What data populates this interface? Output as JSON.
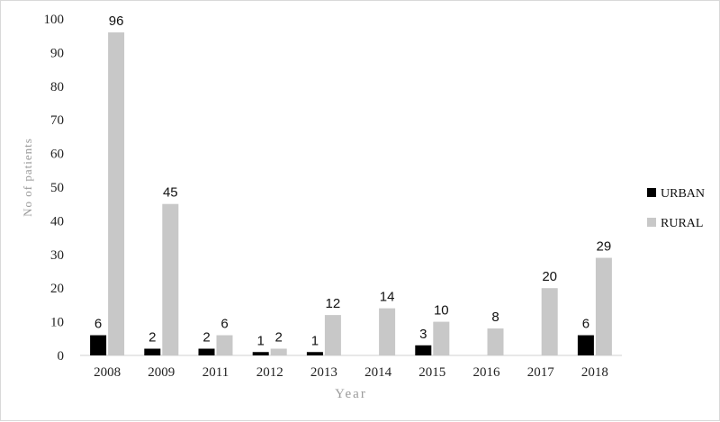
{
  "chart_data": {
    "type": "bar",
    "title": "",
    "xlabel": "Year",
    "ylabel": "No of patients",
    "categories": [
      "2008",
      "2009",
      "2011",
      "2012",
      "2013",
      "2014",
      "2015",
      "2016",
      "2017",
      "2018"
    ],
    "series": [
      {
        "name": "URBAN",
        "color": "#000000",
        "values": [
          6,
          2,
          2,
          1,
          1,
          0,
          3,
          0,
          0,
          6
        ],
        "labels": [
          "6",
          "2",
          "2",
          "1",
          "1",
          null,
          "3",
          null,
          null,
          "6"
        ]
      },
      {
        "name": "RURAL",
        "color": "#c8c8c8",
        "values": [
          96,
          45,
          6,
          2,
          12,
          14,
          10,
          8,
          20,
          29
        ],
        "labels": [
          "96",
          "45",
          "6",
          "2",
          "12",
          "14",
          "10",
          "8",
          "20",
          "29"
        ]
      }
    ],
    "ylim": [
      0,
      100
    ],
    "yticks": [
      0,
      10,
      20,
      30,
      40,
      50,
      60,
      70,
      80,
      90,
      100
    ],
    "grid": false,
    "legend": "right"
  }
}
